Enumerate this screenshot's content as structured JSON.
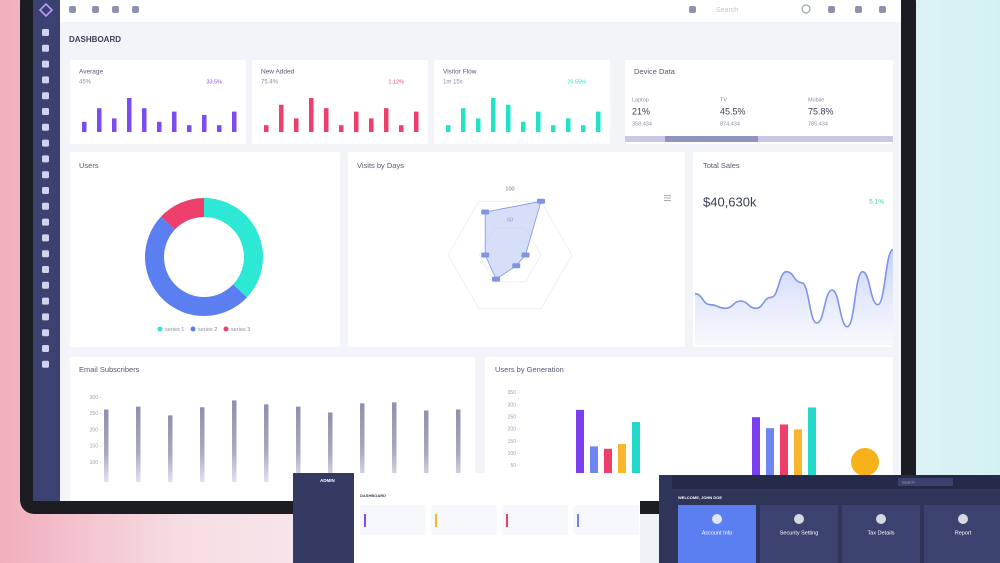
{
  "header": {
    "search": "Search"
  },
  "page_title": "DASHBOARD",
  "stats": [
    {
      "label": "Average",
      "value": "45%",
      "change": "33.5%",
      "color": "#7b4cf0",
      "bars": [
        3,
        7,
        4,
        10,
        7,
        3,
        6,
        2,
        5,
        2,
        6
      ]
    },
    {
      "label": "New Added",
      "value": "75.4%",
      "change": "1.12%",
      "color": "#ee3f6c",
      "bars": [
        2,
        8,
        4,
        10,
        7,
        2,
        6,
        4,
        7,
        2,
        6
      ]
    },
    {
      "label": "Visitor Flow",
      "value": "1m 15s",
      "change": "26.55%",
      "color": "#22e3c8",
      "bars": [
        2,
        7,
        4,
        10,
        8,
        3,
        6,
        2,
        4,
        2,
        6
      ]
    }
  ],
  "device": {
    "title": "Device Data",
    "items": [
      {
        "label": "Laptop",
        "percent": "21%",
        "count": "358,434"
      },
      {
        "label": "TV",
        "percent": "45.5%",
        "count": "874,434"
      },
      {
        "label": "Mobile",
        "percent": "75.8%",
        "count": "785,434"
      }
    ]
  },
  "users": {
    "title": "Users",
    "series": [
      {
        "name": "series 1",
        "color": "#2de8d4",
        "value": 37
      },
      {
        "name": "series 2",
        "color": "#5b7ff0",
        "value": 50
      },
      {
        "name": "series 3",
        "color": "#ee3f6c",
        "value": 13
      }
    ]
  },
  "visits": {
    "title": "Visits by Days",
    "ticks": [
      50,
      100
    ],
    "max": 100,
    "values": [
      100,
      25,
      20,
      45,
      40,
      80
    ]
  },
  "sales": {
    "title": "Total Sales",
    "total": "$40,630k",
    "change": "5.1%",
    "ylim": [
      0,
      60
    ],
    "values": [
      28,
      22,
      20,
      24,
      20,
      26,
      40,
      34,
      12,
      30,
      10,
      40,
      22,
      52
    ]
  },
  "email": {
    "title": "Email Subscribers",
    "ylim": [
      40,
      320
    ],
    "yticks": [
      300,
      250,
      200,
      150,
      100
    ],
    "values": [
      263,
      272,
      245,
      270,
      291,
      279,
      272,
      254,
      282,
      285,
      260,
      263
    ]
  },
  "generation": {
    "title": "Users by Generation",
    "ylim": [
      0,
      370
    ],
    "yticks": [
      350,
      300,
      250,
      200,
      150,
      100,
      50
    ],
    "series": [
      {
        "color": "#7b3ff0",
        "values": [
          280,
          250
        ]
      },
      {
        "color": "#6f86f2",
        "values": [
          130,
          205
        ]
      },
      {
        "color": "#ee3f6c",
        "values": [
          120,
          220
        ]
      },
      {
        "color": "#f9b62c",
        "values": [
          140,
          200
        ]
      },
      {
        "color": "#22d9c9",
        "values": [
          230,
          290
        ]
      }
    ]
  },
  "mini_left": {
    "brand": "ADMIN",
    "title": "DASHBOARD"
  },
  "mini_right": {
    "welcome": "WELCOME, JOHN DOE",
    "search": "Search",
    "cards": [
      "Account Info",
      "Security Setting",
      "Tax Details",
      "Report"
    ]
  }
}
